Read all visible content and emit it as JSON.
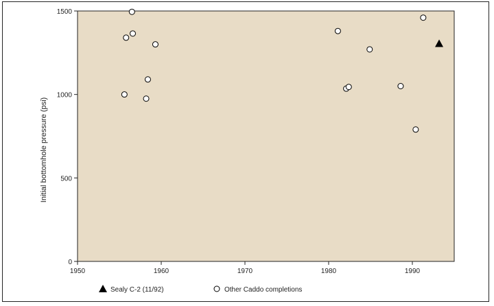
{
  "chart_data": {
    "type": "scatter",
    "title": "",
    "xlabel": "",
    "ylabel": "Initial bottomhole pressure (psi)",
    "xlim": [
      1950,
      1995
    ],
    "ylim": [
      0,
      1500
    ],
    "xticks": [
      1950,
      1960,
      1970,
      1980,
      1990
    ],
    "yticks": [
      0,
      500,
      1000,
      1500
    ],
    "grid": false,
    "plot_background": "#e8dcc6",
    "legend_position": "bottom",
    "series": [
      {
        "name": "Sealy C-2 (11/92)",
        "marker": "filled-triangle",
        "color": "#000000",
        "points": [
          {
            "x": 1993.2,
            "y": 1305
          }
        ]
      },
      {
        "name": "Other Caddo completions",
        "marker": "open-circle",
        "color": "#000000",
        "points": [
          {
            "x": 1955.6,
            "y": 1000
          },
          {
            "x": 1955.8,
            "y": 1340
          },
          {
            "x": 1956.5,
            "y": 1495
          },
          {
            "x": 1956.6,
            "y": 1365
          },
          {
            "x": 1958.2,
            "y": 975
          },
          {
            "x": 1958.4,
            "y": 1090
          },
          {
            "x": 1959.3,
            "y": 1300
          },
          {
            "x": 1981.1,
            "y": 1380
          },
          {
            "x": 1982.1,
            "y": 1035
          },
          {
            "x": 1982.4,
            "y": 1045
          },
          {
            "x": 1984.9,
            "y": 1270
          },
          {
            "x": 1988.6,
            "y": 1050
          },
          {
            "x": 1990.4,
            "y": 790
          },
          {
            "x": 1991.3,
            "y": 1460
          }
        ]
      }
    ]
  }
}
